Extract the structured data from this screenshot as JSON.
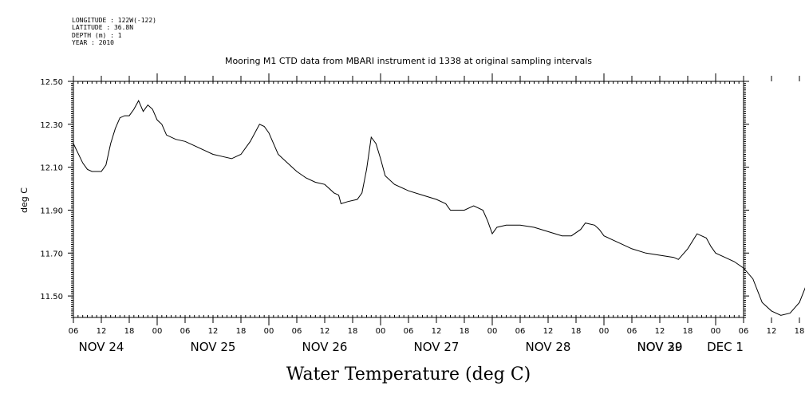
{
  "metadata": {
    "lines": [
      "LONGITUDE : 122W(-122)",
      "LATITUDE : 36.8N",
      "DEPTH (m) : 1",
      "YEAR : 2010"
    ]
  },
  "footer_title": "Water Temperature (deg C)",
  "chart_data": {
    "type": "line",
    "title": "Mooring M1 CTD data from MBARI instrument id 1338 at original sampling intervals",
    "xlabel": "",
    "ylabel": "deg C",
    "ylim": [
      11.4,
      12.5
    ],
    "xlim_hours_from_nov24_00": [
      6,
      150
    ],
    "y_ticks": [
      "12.50",
      "12.30",
      "12.10",
      "11.90",
      "11.70",
      "11.50"
    ],
    "y_tick_values": [
      12.5,
      12.3,
      12.1,
      11.9,
      11.7,
      11.5
    ],
    "x_hour_ticks": [
      "06",
      "12",
      "18",
      "00",
      "06",
      "12",
      "18",
      "00",
      "06",
      "12",
      "18",
      "00",
      "06",
      "12",
      "18",
      "00",
      "06",
      "12",
      "18",
      "00",
      "06",
      "12",
      "18",
      "00",
      "06",
      "12",
      "18",
      "00",
      "06"
    ],
    "day_labels": [
      "NOV 24",
      "NOV 25",
      "NOV 26",
      "NOV 27",
      "NOV 28",
      "NOV 29",
      "NOV 30",
      "DEC 1"
    ],
    "grid": false,
    "series": [
      {
        "name": "",
        "color": "#000000",
        "points": [
          [
            "2010-11-24 06:00",
            12.21
          ],
          [
            "2010-11-24 08:00",
            12.12
          ],
          [
            "2010-11-24 09:00",
            12.09
          ],
          [
            "2010-11-24 10:00",
            12.08
          ],
          [
            "2010-11-24 12:00",
            12.08
          ],
          [
            "2010-11-24 13:00",
            12.11
          ],
          [
            "2010-11-24 14:00",
            12.21
          ],
          [
            "2010-11-24 15:00",
            12.28
          ],
          [
            "2010-11-24 16:00",
            12.33
          ],
          [
            "2010-11-24 17:00",
            12.34
          ],
          [
            "2010-11-24 18:00",
            12.34
          ],
          [
            "2010-11-24 19:00",
            12.37
          ],
          [
            "2010-11-24 20:00",
            12.41
          ],
          [
            "2010-11-24 21:00",
            12.36
          ],
          [
            "2010-11-24 22:00",
            12.39
          ],
          [
            "2010-11-24 23:00",
            12.37
          ],
          [
            "2010-11-25 00:00",
            12.32
          ],
          [
            "2010-11-25 01:00",
            12.3
          ],
          [
            "2010-11-25 02:00",
            12.25
          ],
          [
            "2010-11-25 04:00",
            12.23
          ],
          [
            "2010-11-25 06:00",
            12.22
          ],
          [
            "2010-11-25 08:00",
            12.2
          ],
          [
            "2010-11-25 10:00",
            12.18
          ],
          [
            "2010-11-25 12:00",
            12.16
          ],
          [
            "2010-11-25 14:00",
            12.15
          ],
          [
            "2010-11-25 16:00",
            12.14
          ],
          [
            "2010-11-25 18:00",
            12.16
          ],
          [
            "2010-11-25 20:00",
            12.22
          ],
          [
            "2010-11-25 22:00",
            12.3
          ],
          [
            "2010-11-25 23:00",
            12.29
          ],
          [
            "2010-11-26 00:00",
            12.26
          ],
          [
            "2010-11-26 02:00",
            12.16
          ],
          [
            "2010-11-26 04:00",
            12.12
          ],
          [
            "2010-11-26 06:00",
            12.08
          ],
          [
            "2010-11-26 08:00",
            12.05
          ],
          [
            "2010-11-26 10:00",
            12.03
          ],
          [
            "2010-11-26 12:00",
            12.02
          ],
          [
            "2010-11-26 14:00",
            11.98
          ],
          [
            "2010-11-26 15:00",
            11.97
          ],
          [
            "2010-11-26 15:30",
            11.93
          ],
          [
            "2010-11-26 17:00",
            11.94
          ],
          [
            "2010-11-26 19:00",
            11.95
          ],
          [
            "2010-11-26 20:00",
            11.98
          ],
          [
            "2010-11-26 21:00",
            12.09
          ],
          [
            "2010-11-26 22:00",
            12.24
          ],
          [
            "2010-11-26 23:00",
            12.21
          ],
          [
            "2010-11-27 00:00",
            12.14
          ],
          [
            "2010-11-27 01:00",
            12.06
          ],
          [
            "2010-11-27 03:00",
            12.02
          ],
          [
            "2010-11-27 06:00",
            11.99
          ],
          [
            "2010-11-27 09:00",
            11.97
          ],
          [
            "2010-11-27 12:00",
            11.95
          ],
          [
            "2010-11-27 14:00",
            11.93
          ],
          [
            "2010-11-27 15:00",
            11.9
          ],
          [
            "2010-11-27 18:00",
            11.9
          ],
          [
            "2010-11-27 20:00",
            11.92
          ],
          [
            "2010-11-27 22:00",
            11.9
          ],
          [
            "2010-11-27 23:00",
            11.85
          ],
          [
            "2010-11-28 00:00",
            11.79
          ],
          [
            "2010-11-28 01:00",
            11.82
          ],
          [
            "2010-11-28 03:00",
            11.83
          ],
          [
            "2010-11-28 06:00",
            11.83
          ],
          [
            "2010-11-28 09:00",
            11.82
          ],
          [
            "2010-11-28 12:00",
            11.8
          ],
          [
            "2010-11-28 15:00",
            11.78
          ],
          [
            "2010-11-28 17:00",
            11.78
          ],
          [
            "2010-11-28 19:00",
            11.81
          ],
          [
            "2010-11-28 20:00",
            11.84
          ],
          [
            "2010-11-28 22:00",
            11.83
          ],
          [
            "2010-11-28 23:00",
            11.81
          ],
          [
            "2010-11-29 00:00",
            11.78
          ],
          [
            "2010-11-29 03:00",
            11.75
          ],
          [
            "2010-11-29 06:00",
            11.72
          ],
          [
            "2010-11-29 09:00",
            11.7
          ],
          [
            "2010-11-29 12:00",
            11.69
          ],
          [
            "2010-11-29 15:00",
            11.68
          ],
          [
            "2010-11-29 16:00",
            11.67
          ],
          [
            "2010-11-29 18:00",
            11.72
          ],
          [
            "2010-11-29 20:00",
            11.79
          ],
          [
            "2010-11-29 22:00",
            11.77
          ],
          [
            "2010-11-29 23:00",
            11.73
          ],
          [
            "2010-11-30 00:00",
            11.7
          ],
          [
            "2010-11-30 02:00",
            11.68
          ],
          [
            "2010-11-30 04:00",
            11.66
          ],
          [
            "2010-11-30 06:00",
            11.63
          ],
          [
            "2010-11-30 08:00",
            11.58
          ],
          [
            "2010-11-30 10:00",
            11.47
          ],
          [
            "2010-11-30 12:00",
            11.43
          ],
          [
            "2010-11-30 14:00",
            11.41
          ],
          [
            "2010-11-30 16:00",
            11.42
          ],
          [
            "2010-11-30 18:00",
            11.47
          ],
          [
            "2010-11-30 20:00",
            11.58
          ],
          [
            "2010-11-30 21:00",
            11.66
          ],
          [
            "2010-11-30 22:00",
            11.7
          ],
          [
            "2010-11-30 23:00",
            11.6
          ],
          [
            "2010-11-30 23:30",
            11.5
          ],
          [
            "2010-12-01 00:00",
            11.48
          ],
          [
            "2010-12-01 02:00",
            11.49
          ],
          [
            "2010-12-01 04:00",
            11.47
          ],
          [
            "2010-12-01 05:00",
            11.46
          ],
          [
            "2010-12-01 06:00",
            11.45
          ]
        ]
      }
    ]
  }
}
